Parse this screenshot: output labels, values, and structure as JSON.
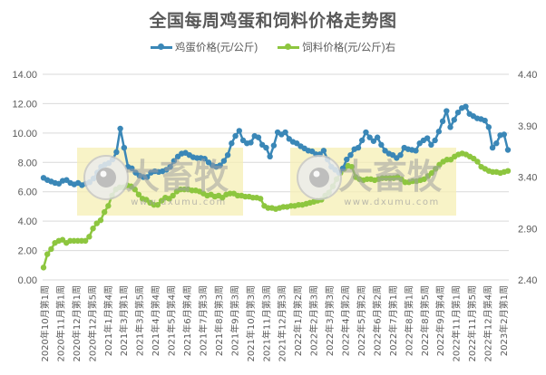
{
  "title": "全国每周鸡蛋和饲料价格走势图",
  "legend": [
    {
      "label": "鸡蛋价格(元/公斤)",
      "color": "#3a87b7"
    },
    {
      "label": "饲料价格(元/公斤)右",
      "color": "#8dc63f"
    }
  ],
  "watermark": {
    "brand": "大畜牧",
    "url": "www.dxumu.com"
  },
  "chart_data": {
    "type": "line",
    "title": "全国每周鸡蛋和饲料价格走势图",
    "xlabel": "",
    "ylabel_left": "鸡蛋价格(元/公斤)",
    "ylabel_right": "饲料价格(元/公斤)",
    "left_axis": {
      "ticks": [
        "0.00",
        "2.00",
        "4.00",
        "6.00",
        "8.00",
        "10.00",
        "12.00",
        "14.00"
      ],
      "range": [
        0,
        14
      ]
    },
    "right_axis": {
      "ticks": [
        "2.40",
        "2.90",
        "3.40",
        "3.90",
        "4.40"
      ],
      "range": [
        2.4,
        4.4
      ]
    },
    "grid": true,
    "legend_position": "top",
    "x_tick_labels": [
      "2020年10月第1周",
      "2020年11月第1周",
      "2020年12月第1周",
      "2020年12月第5周",
      "2021年1月第4周",
      "2021年3月第1周",
      "2021年3月第5周",
      "2021年4月第4周",
      "2021年5月第4周",
      "2021年6月第4周",
      "2021年7月第3周",
      "2021年8月第3周",
      "2021年9月第3周",
      "2021年10月第3周",
      "2021年11月第3周",
      "2021年12月第3周",
      "2022年1月第2周",
      "2022年2月第3周",
      "2022年3月第3周",
      "2022年4月第2周",
      "2022年5月第2周",
      "2022年6月第2周",
      "2022年7月第1周",
      "2022年8月第1周",
      "2022年8月第5周",
      "2022年9月第4周",
      "2022年11月第1周",
      "2022年11月第5周",
      "2022年12月第4周",
      "2023年2月第1周"
    ],
    "series": [
      {
        "name": "鸡蛋价格(元/公斤)",
        "axis": "left",
        "color": "#3a87b7",
        "values": [
          6.95,
          6.8,
          6.7,
          6.6,
          6.55,
          6.75,
          6.8,
          6.6,
          6.5,
          6.6,
          6.45,
          6.55,
          6.65,
          6.9,
          7.3,
          7.7,
          7.85,
          7.95,
          8.2,
          8.7,
          10.3,
          9.0,
          7.7,
          7.6,
          7.3,
          7.1,
          7.0,
          7.0,
          7.3,
          7.4,
          7.35,
          7.4,
          7.5,
          7.7,
          8.1,
          8.4,
          8.6,
          8.65,
          8.5,
          8.35,
          8.3,
          8.3,
          8.25,
          8.0,
          7.8,
          7.7,
          7.8,
          8.1,
          8.5,
          9.3,
          9.8,
          10.15,
          9.5,
          9.3,
          9.35,
          9.8,
          9.7,
          9.2,
          9.0,
          8.4,
          9.15,
          10.05,
          9.9,
          10.05,
          9.6,
          9.4,
          9.3,
          9.1,
          8.95,
          8.8,
          8.75,
          8.55,
          8.55,
          8.8,
          8.2,
          7.7,
          7.5,
          7.3,
          7.6,
          8.2,
          8.5,
          8.9,
          9.0,
          9.5,
          10.05,
          9.7,
          9.45,
          9.7,
          9.2,
          8.8,
          8.6,
          8.5,
          8.3,
          8.5,
          9.0,
          8.9,
          8.85,
          8.8,
          9.3,
          9.5,
          9.65,
          9.2,
          9.5,
          10.1,
          10.8,
          11.5,
          10.4,
          10.9,
          11.4,
          11.7,
          11.8,
          11.3,
          11.15,
          11.0,
          10.95,
          10.85,
          10.4,
          9.0,
          9.3,
          9.85,
          9.9,
          8.85
        ]
      },
      {
        "name": "饲料价格(元/公斤)右",
        "axis": "right",
        "color": "#8dc63f",
        "values": [
          2.52,
          2.65,
          2.7,
          2.76,
          2.78,
          2.79,
          2.76,
          2.78,
          2.78,
          2.78,
          2.78,
          2.78,
          2.82,
          2.9,
          2.95,
          2.98,
          3.06,
          3.12,
          3.22,
          3.28,
          3.3,
          3.3,
          3.32,
          3.31,
          3.28,
          3.23,
          3.19,
          3.18,
          3.15,
          3.13,
          3.13,
          3.17,
          3.2,
          3.19,
          3.22,
          3.26,
          3.28,
          3.28,
          3.28,
          3.27,
          3.27,
          3.26,
          3.24,
          3.22,
          3.23,
          3.21,
          3.22,
          3.2,
          3.23,
          3.24,
          3.24,
          3.22,
          3.22,
          3.21,
          3.21,
          3.2,
          3.2,
          3.19,
          3.12,
          3.1,
          3.1,
          3.09,
          3.1,
          3.11,
          3.11,
          3.12,
          3.12,
          3.13,
          3.13,
          3.14,
          3.15,
          3.16,
          3.17,
          3.18,
          3.22,
          3.25,
          3.31,
          3.38,
          3.44,
          3.48,
          3.51,
          3.5,
          3.4,
          3.38,
          3.37,
          3.38,
          3.38,
          3.37,
          3.38,
          3.39,
          3.39,
          3.39,
          3.39,
          3.4,
          3.38,
          3.35,
          3.35,
          3.36,
          3.36,
          3.37,
          3.38,
          3.41,
          3.44,
          3.48,
          3.52,
          3.55,
          3.57,
          3.57,
          3.6,
          3.62,
          3.63,
          3.62,
          3.6,
          3.58,
          3.55,
          3.5,
          3.48,
          3.46,
          3.45,
          3.45,
          3.44,
          3.45,
          3.46
        ]
      }
    ]
  }
}
